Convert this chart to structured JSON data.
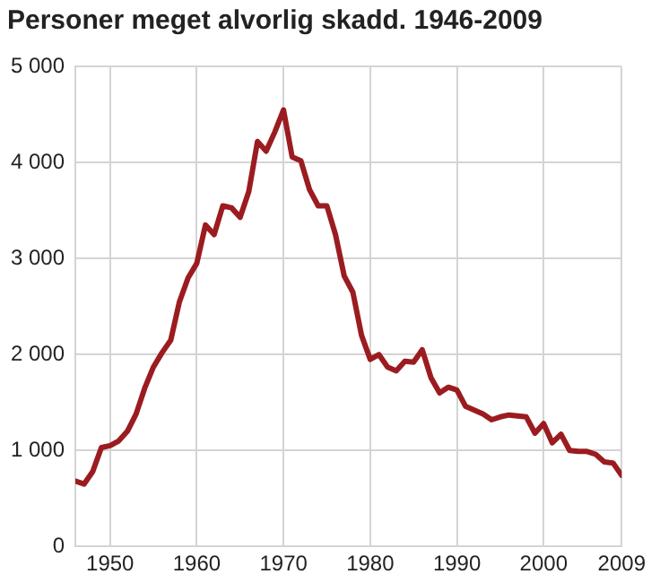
{
  "chart_data": {
    "type": "line",
    "title": "Personer meget alvorlig skadd. 1946-2009",
    "x": [
      1946,
      1947,
      1948,
      1949,
      1950,
      1951,
      1952,
      1953,
      1954,
      1955,
      1956,
      1957,
      1958,
      1959,
      1960,
      1961,
      1962,
      1963,
      1964,
      1965,
      1966,
      1967,
      1968,
      1969,
      1970,
      1971,
      1972,
      1973,
      1974,
      1975,
      1976,
      1977,
      1978,
      1979,
      1980,
      1981,
      1982,
      1983,
      1984,
      1985,
      1986,
      1987,
      1988,
      1989,
      1990,
      1991,
      1992,
      1993,
      1994,
      1995,
      1996,
      1997,
      1998,
      1999,
      2000,
      2001,
      2002,
      2003,
      2004,
      2005,
      2006,
      2007,
      2008,
      2009
    ],
    "series": [
      {
        "color": "#9b1c20",
        "values": [
          680,
          650,
          780,
          1030,
          1050,
          1100,
          1200,
          1380,
          1650,
          1870,
          2020,
          2150,
          2550,
          2800,
          2950,
          3350,
          3250,
          3550,
          3530,
          3430,
          3700,
          4220,
          4120,
          4320,
          4550,
          4060,
          4020,
          3720,
          3550,
          3550,
          3250,
          2820,
          2650,
          2200,
          1950,
          2000,
          1870,
          1830,
          1930,
          1920,
          2050,
          1760,
          1600,
          1660,
          1630,
          1460,
          1420,
          1380,
          1320,
          1350,
          1370,
          1360,
          1350,
          1180,
          1280,
          1080,
          1170,
          1000,
          990,
          990,
          960,
          880,
          870,
          740
        ]
      }
    ],
    "xlim": [
      1946,
      2009
    ],
    "xticks": [
      1950,
      1960,
      1970,
      1980,
      1990,
      2000,
      2009
    ],
    "ylim": [
      0,
      5000
    ],
    "yticks": [
      0,
      {
        "value": 1000,
        "label": "1 000"
      },
      {
        "value": 2000,
        "label": "2 000"
      },
      {
        "value": 3000,
        "label": "3 000"
      },
      {
        "value": 4000,
        "label": "4 000"
      },
      {
        "value": 5000,
        "label": "5 000"
      }
    ],
    "grid": true,
    "legend": false,
    "marker": "none",
    "line_style": "solid"
  }
}
